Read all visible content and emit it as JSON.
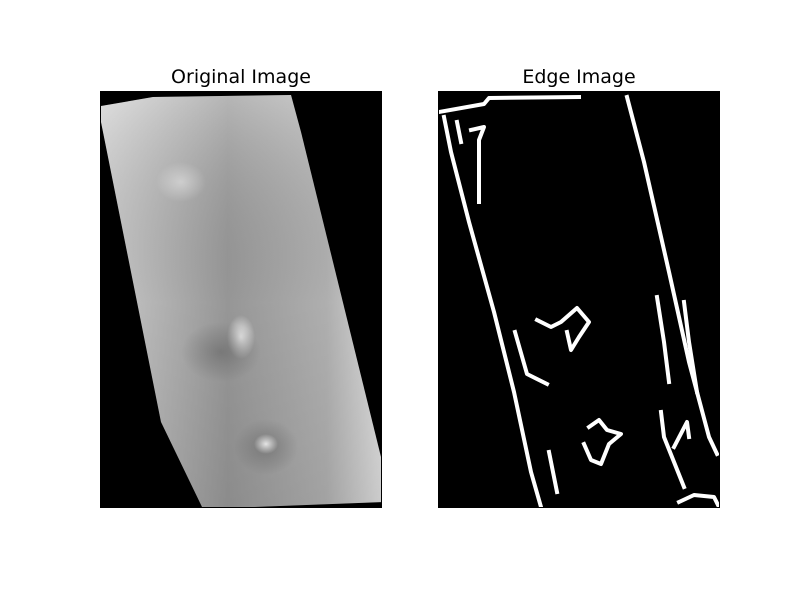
{
  "figure": {
    "panels": [
      {
        "title": "Original Image"
      },
      {
        "title": "Edge Image"
      }
    ]
  }
}
